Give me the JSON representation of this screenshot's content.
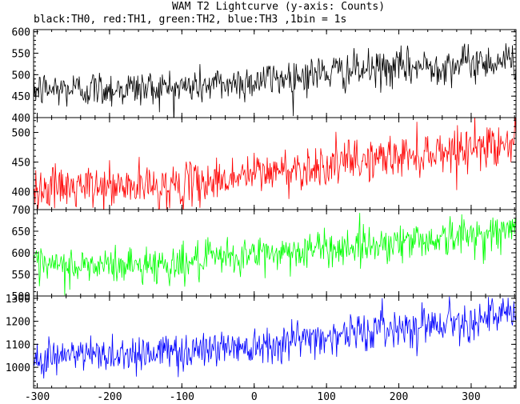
{
  "chart_data": {
    "type": "line",
    "title": "WAM T2 Lightcurve (y-axis: Counts)",
    "subtitle": "black:TH0, red:TH1, green:TH2, blue:TH3 ,1bin = 1s",
    "xlabel": "",
    "ylabel": "",
    "xlim": [
      -305,
      362
    ],
    "x_ticks": [
      -300,
      -200,
      -100,
      0,
      100,
      200,
      300
    ],
    "grid": false,
    "panels": [
      {
        "name": "TH0",
        "color": "#000000",
        "ylim": [
          400,
          605
        ],
        "y_ticks": [
          400,
          450,
          500,
          550,
          600
        ],
        "trend": [
          [
            -305,
            465
          ],
          [
            -100,
            470
          ],
          [
            0,
            485
          ],
          [
            100,
            505
          ],
          [
            200,
            515
          ],
          [
            362,
            535
          ]
        ],
        "noise_sd": 22
      },
      {
        "name": "TH1",
        "color": "#ff0000",
        "ylim": [
          370,
          525
        ],
        "y_ticks": [
          400,
          450,
          500
        ],
        "trend": [
          [
            -305,
            405
          ],
          [
            -100,
            410
          ],
          [
            0,
            430
          ],
          [
            100,
            445
          ],
          [
            200,
            460
          ],
          [
            362,
            485
          ]
        ],
        "noise_sd": 18
      },
      {
        "name": "TH2",
        "color": "#00ff00",
        "ylim": [
          500,
          700
        ],
        "y_ticks": [
          500,
          550,
          600,
          650,
          700
        ],
        "trend": [
          [
            -305,
            565
          ],
          [
            -100,
            575
          ],
          [
            0,
            595
          ],
          [
            100,
            610
          ],
          [
            200,
            625
          ],
          [
            362,
            650
          ]
        ],
        "noise_sd": 22
      },
      {
        "name": "TH3",
        "color": "#0000ff",
        "ylim": [
          910,
          1310
        ],
        "y_ticks": [
          1000,
          1100,
          1200,
          1300
        ],
        "trend": [
          [
            -305,
            1045
          ],
          [
            -100,
            1070
          ],
          [
            0,
            1100
          ],
          [
            100,
            1135
          ],
          [
            200,
            1175
          ],
          [
            362,
            1230
          ]
        ],
        "noise_sd": 42
      }
    ]
  }
}
